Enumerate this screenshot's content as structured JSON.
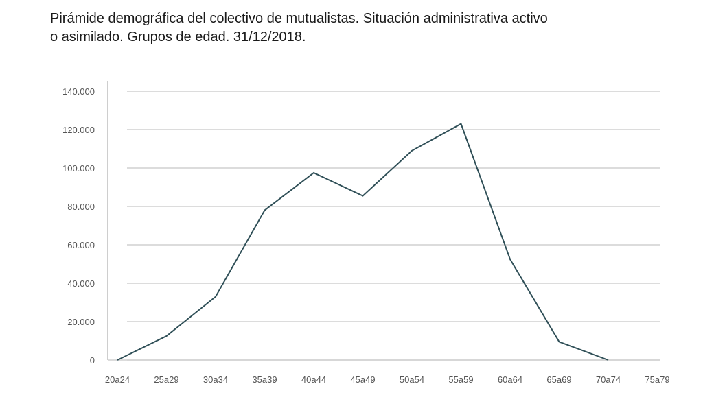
{
  "title": {
    "line1": "Pirámide demográfica del colectivo de mutualistas. Situación administrativa activo",
    "line2": "o asimilado. Grupos de edad. 31/12/2018."
  },
  "colors": {
    "line": "#2f4f57",
    "grid": "#c8c8c8",
    "axis": "#bdbdbd",
    "text": "#555555"
  },
  "chart_data": {
    "type": "line",
    "title": "Pirámide demográfica del colectivo de mutualistas. Situación administrativa activo o asimilado. Grupos de edad. 31/12/2018.",
    "xlabel": "",
    "ylabel": "",
    "ylim": [
      0,
      140000
    ],
    "yticks": [
      0,
      20000,
      40000,
      60000,
      80000,
      100000,
      120000,
      140000
    ],
    "ytick_labels": [
      "0",
      "20.000",
      "40.000",
      "60.000",
      "80.000",
      "100.000",
      "120.000",
      "140.000"
    ],
    "grid": true,
    "legend": null,
    "categories": [
      "20a24",
      "25a29",
      "30a34",
      "35a39",
      "40a44",
      "45a49",
      "50a54",
      "55a59",
      "60a64",
      "65a69",
      "70a74",
      "75a79"
    ],
    "series": [
      {
        "name": "Mutualistas",
        "values": [
          0,
          12500,
          33000,
          78000,
          97500,
          85500,
          109000,
          123000,
          52500,
          9500,
          0,
          null
        ]
      }
    ]
  }
}
